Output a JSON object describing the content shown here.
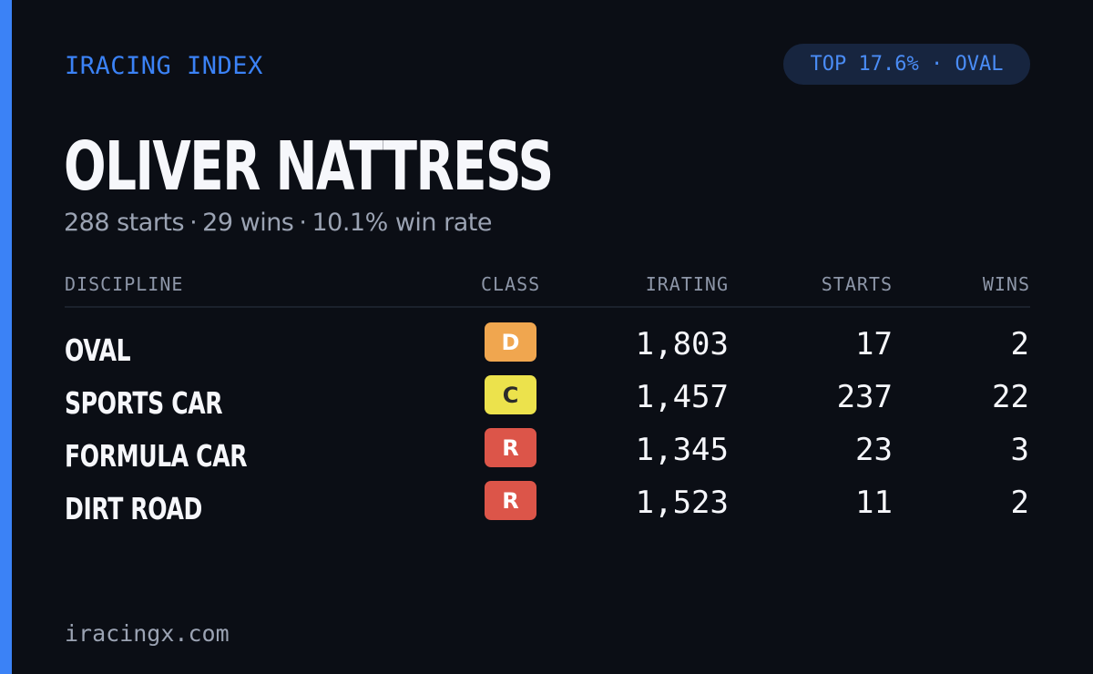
{
  "brand": "IRACING INDEX",
  "rank_badge": "TOP 17.6% · OVAL",
  "driver_name": "OLIVER NATTRESS",
  "summary": {
    "starts": "288 starts",
    "wins": "29 wins",
    "win_rate": "10.1% win rate",
    "separator": "·"
  },
  "table": {
    "headers": {
      "discipline": "DISCIPLINE",
      "class": "CLASS",
      "irating": "IRATING",
      "starts": "STARTS",
      "wins": "WINS"
    },
    "rows": [
      {
        "discipline": "OVAL",
        "class": "D",
        "class_bg": "#f0a64f",
        "class_fg": "#ffffff",
        "irating": "1,803",
        "starts": "17",
        "wins": "2"
      },
      {
        "discipline": "SPORTS CAR",
        "class": "C",
        "class_bg": "#ece24c",
        "class_fg": "#2b2b2b",
        "irating": "1,457",
        "starts": "237",
        "wins": "22"
      },
      {
        "discipline": "FORMULA CAR",
        "class": "R",
        "class_bg": "#dc5549",
        "class_fg": "#ffffff",
        "irating": "1,345",
        "starts": "23",
        "wins": "3"
      },
      {
        "discipline": "DIRT ROAD",
        "class": "R",
        "class_bg": "#dc5549",
        "class_fg": "#ffffff",
        "irating": "1,523",
        "starts": "11",
        "wins": "2"
      }
    ]
  },
  "footer": "iracingx.com",
  "colors": {
    "background": "#0b0e15",
    "accent": "#3b82f6",
    "text_primary": "#f6f7fb",
    "text_muted": "#9ba3b3"
  }
}
